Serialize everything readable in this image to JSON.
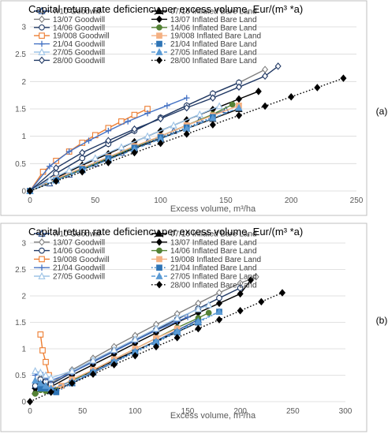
{
  "chart_data": [
    {
      "type": "line",
      "panel_label": "(a)",
      "title": "Capital return rate deficiency per excess volume, Eur/(m³ *a)",
      "xlabel": "Excess volume, m³/ha",
      "ylabel": "",
      "xlim": [
        0,
        250
      ],
      "ylim": [
        0,
        3
      ],
      "xticks": [
        0,
        50,
        100,
        150,
        200,
        250
      ],
      "yticks": [
        0,
        0.5,
        1,
        1.5,
        2,
        2.5,
        3
      ],
      "x_tick_labels": [
        "0",
        "50",
        "100",
        "150",
        "200",
        "250"
      ],
      "y_tick_labels": [
        "0",
        "0.5",
        "1",
        "1.5",
        "2",
        "2.5",
        "3"
      ],
      "grid": "horizontal",
      "legend_position": "top-left",
      "series": [
        {
          "name": "7/10 Goodwill",
          "color": "#2f5597",
          "marker": "triangle-open",
          "dash": "solid",
          "x": [
            0,
            15,
            30,
            50,
            70,
            90,
            110,
            130,
            150
          ],
          "y": [
            0,
            0.14,
            0.3,
            0.5,
            0.7,
            0.9,
            1.1,
            1.3,
            1.48
          ]
        },
        {
          "name": "07/10 Inflated Bare Land",
          "color": "#000000",
          "marker": "triangle",
          "dash": "solid",
          "x": [
            0,
            20,
            40,
            60,
            80,
            100,
            120,
            140,
            160
          ],
          "y": [
            0,
            0.2,
            0.39,
            0.58,
            0.78,
            0.96,
            1.14,
            1.32,
            1.5
          ]
        },
        {
          "name": "13/07 Goodwill",
          "color": "#7f7f7f",
          "marker": "diamond-open",
          "dash": "solid",
          "x": [
            0,
            20,
            40,
            60,
            80,
            100,
            120,
            140,
            160,
            180
          ],
          "y": [
            0,
            0.32,
            0.6,
            0.86,
            1.1,
            1.34,
            1.56,
            1.78,
            1.98,
            2.22
          ]
        },
        {
          "name": "13/07 Inflated Bare Land",
          "color": "#000000",
          "marker": "diamond",
          "dash": "solid",
          "x": [
            0,
            20,
            40,
            60,
            80,
            100,
            120,
            140,
            160,
            175
          ],
          "y": [
            0,
            0.24,
            0.47,
            0.68,
            0.9,
            1.1,
            1.3,
            1.49,
            1.68,
            1.82
          ]
        },
        {
          "name": "14/06 Goodwill",
          "color": "#1f3864",
          "marker": "circle-open",
          "dash": "solid",
          "x": [
            0,
            20,
            40,
            60,
            80,
            100,
            120,
            140,
            160
          ],
          "y": [
            0,
            0.32,
            0.6,
            0.86,
            1.1,
            1.34,
            1.56,
            1.78,
            1.98
          ]
        },
        {
          "name": "14/06 Inflated Bare Land",
          "color": "#548235",
          "marker": "circle",
          "dash": "solid",
          "x": [
            0,
            20,
            40,
            60,
            80,
            100,
            120,
            140,
            155
          ],
          "y": [
            0,
            0.2,
            0.4,
            0.6,
            0.8,
            1.0,
            1.2,
            1.4,
            1.58
          ]
        },
        {
          "name": "19/008 Goodwill",
          "color": "#ed7d31",
          "marker": "square-open",
          "dash": "solid",
          "x": [
            0,
            10,
            20,
            30,
            40,
            50,
            60,
            70,
            80,
            90
          ],
          "y": [
            0,
            0.35,
            0.55,
            0.72,
            0.88,
            1.02,
            1.15,
            1.27,
            1.39,
            1.5
          ]
        },
        {
          "name": "19/008 Inflated Bare Land",
          "color": "#f4b183",
          "marker": "square",
          "dash": "solid",
          "x": [
            0,
            20,
            40,
            60,
            80,
            100,
            120,
            140,
            160
          ],
          "y": [
            0,
            0.22,
            0.42,
            0.62,
            0.82,
            1.0,
            1.2,
            1.38,
            1.56
          ]
        },
        {
          "name": "21/04 Goodwill",
          "color": "#4472c4",
          "marker": "plus",
          "dash": "solid",
          "x": [
            0,
            15,
            30,
            45,
            60,
            75,
            90,
            105,
            120
          ],
          "y": [
            0,
            0.45,
            0.72,
            0.92,
            1.1,
            1.27,
            1.42,
            1.56,
            1.7
          ]
        },
        {
          "name": "21/04 Inflated Bare Land",
          "color": "#2e75b6",
          "marker": "square",
          "dash": "dotted",
          "x": [
            0,
            20,
            40,
            60,
            80,
            100,
            120,
            140
          ],
          "y": [
            0,
            0.2,
            0.4,
            0.6,
            0.79,
            0.98,
            1.16,
            1.35
          ]
        },
        {
          "name": "27/05 Goodwill",
          "color": "#9dc3e6",
          "marker": "triangle-open",
          "dash": "solid",
          "x": [
            0,
            15,
            30,
            50,
            70,
            90,
            110,
            130,
            145
          ],
          "y": [
            0,
            0.2,
            0.38,
            0.6,
            0.8,
            1.0,
            1.2,
            1.4,
            1.55
          ]
        },
        {
          "name": "27/05 Inflated Bare Land",
          "color": "#5b9bd5",
          "marker": "triangle",
          "dash": "dashed",
          "x": [
            0,
            20,
            40,
            60,
            80,
            100,
            120,
            140,
            160
          ],
          "y": [
            0,
            0.19,
            0.38,
            0.57,
            0.76,
            0.95,
            1.14,
            1.33,
            1.52
          ]
        },
        {
          "name": "28/00 Goodwill",
          "color": "#203864",
          "marker": "diamond-open",
          "dash": "solid",
          "x": [
            0,
            20,
            40,
            60,
            80,
            100,
            120,
            140,
            160,
            180,
            190
          ],
          "y": [
            0,
            0.42,
            0.7,
            0.92,
            1.13,
            1.32,
            1.52,
            1.7,
            1.9,
            2.1,
            2.28
          ]
        },
        {
          "name": "28/00 Inflated Bare Land",
          "color": "#000000",
          "marker": "diamond",
          "dash": "dotted",
          "x": [
            0,
            20,
            40,
            60,
            80,
            100,
            120,
            140,
            160,
            180,
            200,
            220,
            240
          ],
          "y": [
            0,
            0.18,
            0.35,
            0.52,
            0.7,
            0.87,
            1.04,
            1.21,
            1.38,
            1.55,
            1.72,
            1.89,
            2.06
          ]
        }
      ]
    },
    {
      "type": "line",
      "panel_label": "(b)",
      "title": "Capital return rate deficiency per excess volume, Eur/(m³ *a)",
      "xlabel": "Excess volume, m³/ha",
      "ylabel": "",
      "xlim": [
        0,
        300
      ],
      "ylim": [
        0,
        3
      ],
      "xticks": [
        0,
        50,
        100,
        150,
        200,
        250,
        300
      ],
      "yticks": [
        0,
        0.5,
        1,
        1.5,
        2,
        2.5,
        3
      ],
      "x_tick_labels": [
        "0",
        "50",
        "100",
        "150",
        "200",
        "250",
        "300"
      ],
      "y_tick_labels": [
        "0",
        "0.5",
        "1",
        "1.5",
        "2",
        "2.5",
        "3"
      ],
      "grid": "horizontal",
      "legend_position": "top-left",
      "series": [
        {
          "name": "7/10 Goodwill",
          "color": "#2f5597",
          "marker": "triangle-open",
          "dash": "solid",
          "x": [
            5,
            10,
            15,
            20,
            40,
            60,
            80,
            100,
            120,
            140,
            160
          ],
          "y": [
            0.3,
            0.4,
            0.3,
            0.2,
            0.35,
            0.55,
            0.75,
            0.95,
            1.15,
            1.35,
            1.55
          ]
        },
        {
          "name": "07/10 Inflated Bare Land",
          "color": "#000000",
          "marker": "triangle",
          "dash": "solid",
          "x": [
            5,
            10,
            15,
            20,
            40,
            60,
            80,
            100,
            120,
            140,
            160
          ],
          "y": [
            0.2,
            0.3,
            0.25,
            0.22,
            0.4,
            0.58,
            0.78,
            0.96,
            1.14,
            1.32,
            1.5
          ]
        },
        {
          "name": "13/07 Goodwill",
          "color": "#7f7f7f",
          "marker": "diamond-open",
          "dash": "solid",
          "x": [
            5,
            10,
            15,
            20,
            40,
            60,
            80,
            100,
            120,
            140,
            160,
            180,
            200,
            215
          ],
          "y": [
            0.3,
            0.45,
            0.4,
            0.35,
            0.6,
            0.82,
            1.04,
            1.25,
            1.46,
            1.66,
            1.86,
            2.06,
            2.24,
            2.36
          ]
        },
        {
          "name": "13/07 Inflated Bare Land",
          "color": "#000000",
          "marker": "diamond",
          "dash": "solid",
          "x": [
            5,
            10,
            15,
            20,
            40,
            60,
            80,
            100,
            120,
            140,
            160,
            180,
            200,
            210
          ],
          "y": [
            0.25,
            0.35,
            0.3,
            0.28,
            0.5,
            0.7,
            0.9,
            1.1,
            1.3,
            1.5,
            1.68,
            1.86,
            2.04,
            2.3
          ]
        },
        {
          "name": "14/06 Goodwill",
          "color": "#1f3864",
          "marker": "circle-open",
          "dash": "solid",
          "x": [
            5,
            10,
            15,
            20,
            40,
            60,
            80,
            100,
            120,
            140,
            160,
            180,
            200
          ],
          "y": [
            0.3,
            0.42,
            0.38,
            0.33,
            0.55,
            0.76,
            0.96,
            1.16,
            1.36,
            1.56,
            1.76,
            1.96,
            2.15
          ]
        },
        {
          "name": "14/06 Inflated Bare Land",
          "color": "#548235",
          "marker": "circle",
          "dash": "solid",
          "x": [
            5,
            10,
            15,
            20,
            40,
            60,
            80,
            100,
            120,
            140,
            160,
            170
          ],
          "y": [
            0.15,
            0.22,
            0.2,
            0.2,
            0.4,
            0.6,
            0.8,
            1.0,
            1.2,
            1.4,
            1.58,
            1.68
          ]
        },
        {
          "name": "19/008 Goodwill",
          "color": "#ed7d31",
          "marker": "square-open",
          "dash": "solid",
          "x": [
            10,
            12,
            15,
            18
          ],
          "y": [
            1.27,
            0.97,
            0.75,
            0.5
          ]
        },
        {
          "name": "19/008 Inflated Bare Land",
          "color": "#f4b183",
          "marker": "square",
          "dash": "solid",
          "x": [
            20,
            30,
            40,
            60,
            80,
            100,
            120,
            140
          ],
          "y": [
            0.25,
            0.3,
            0.42,
            0.6,
            0.8,
            1.0,
            1.2,
            1.38
          ]
        },
        {
          "name": "21/04 Goodwill",
          "color": "#4472c4",
          "marker": "plus",
          "dash": "solid",
          "x": [
            5,
            10,
            15,
            20,
            40,
            60,
            80,
            100,
            120,
            140,
            150
          ],
          "y": [
            0.5,
            0.55,
            0.45,
            0.4,
            0.55,
            0.75,
            0.95,
            1.15,
            1.35,
            1.52,
            1.6
          ]
        },
        {
          "name": "21/04 Inflated Bare Land",
          "color": "#2e75b6",
          "marker": "square",
          "dash": "dotted",
          "x": [
            10,
            15,
            20,
            25,
            40,
            60,
            80,
            100,
            120,
            140,
            160,
            180
          ],
          "y": [
            0.25,
            0.25,
            0.2,
            0.18,
            0.35,
            0.55,
            0.74,
            0.93,
            1.12,
            1.31,
            1.5,
            1.7
          ]
        },
        {
          "name": "27/05 Goodwill",
          "color": "#9dc3e6",
          "marker": "triangle-open",
          "dash": "solid",
          "x": [
            5,
            10,
            15,
            20,
            40,
            60,
            80,
            100,
            120,
            140,
            160,
            170
          ],
          "y": [
            0.58,
            0.55,
            0.5,
            0.45,
            0.58,
            0.78,
            0.98,
            1.18,
            1.38,
            1.58,
            1.75,
            1.83
          ]
        },
        {
          "name": "27/05 Inflated Bare Land",
          "color": "#5b9bd5",
          "marker": "triangle",
          "dash": "dashed",
          "x": [
            5,
            10,
            15,
            20,
            40,
            60,
            80,
            100,
            120,
            140,
            160,
            180
          ],
          "y": [
            0.4,
            0.35,
            0.3,
            0.25,
            0.38,
            0.57,
            0.76,
            0.95,
            1.14,
            1.33,
            1.52,
            1.7
          ]
        },
        {
          "name": "28/00 Inflated Bare Land",
          "color": "#000000",
          "marker": "diamond",
          "dash": "dotted",
          "x": [
            0,
            20,
            40,
            60,
            80,
            100,
            120,
            140,
            160,
            180,
            200,
            220,
            240
          ],
          "y": [
            0,
            0.18,
            0.35,
            0.52,
            0.7,
            0.87,
            1.04,
            1.21,
            1.38,
            1.55,
            1.72,
            1.89,
            2.06
          ]
        }
      ]
    }
  ]
}
